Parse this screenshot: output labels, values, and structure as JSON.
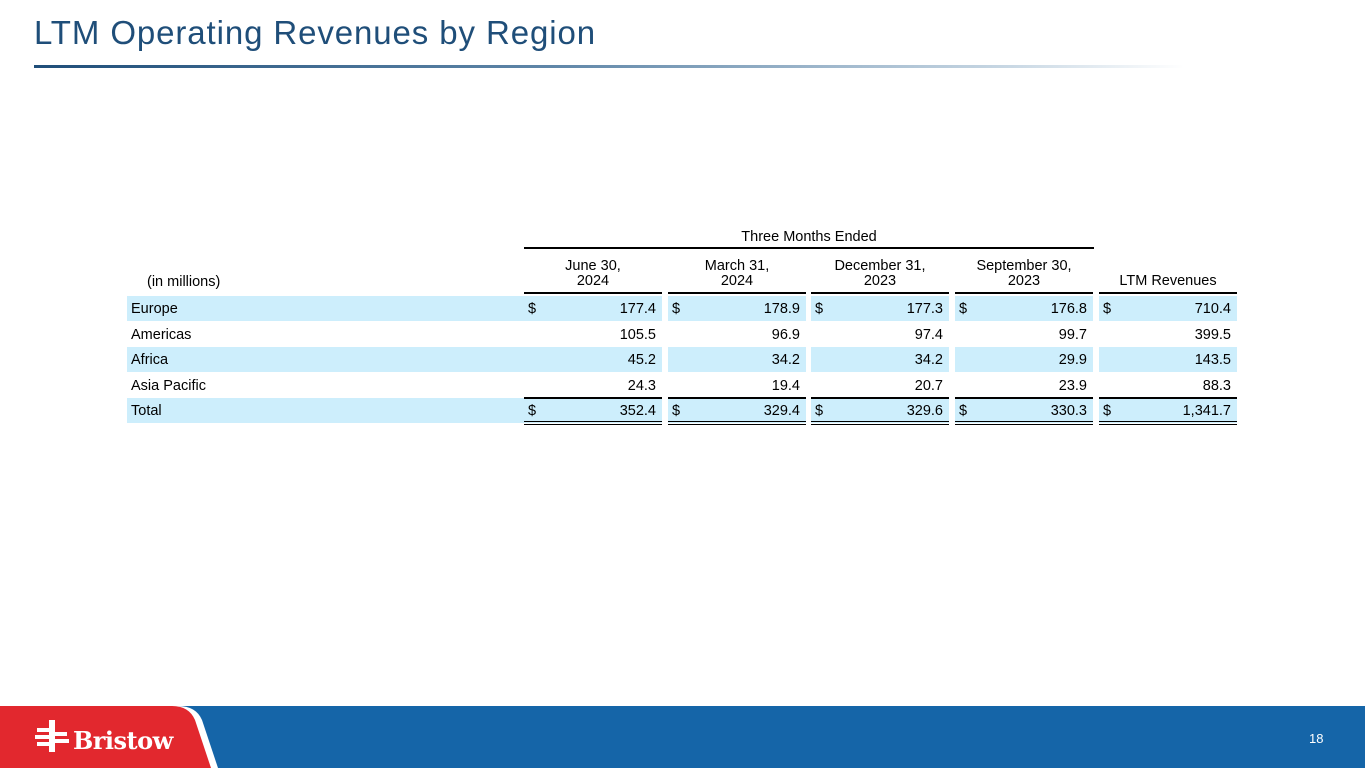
{
  "title": "LTM Operating Revenues by Region",
  "table": {
    "group_header": "Three Months Ended",
    "units_label": "(in millions)",
    "columns": [
      {
        "line1": "June 30,",
        "line2": "2024"
      },
      {
        "line1": "March 31,",
        "line2": "2024"
      },
      {
        "line1": "December 31,",
        "line2": "2023"
      },
      {
        "line1": "September 30,",
        "line2": "2023"
      },
      {
        "line1": "LTM Revenues",
        "line2": ""
      }
    ],
    "currency_symbol": "$",
    "rows": [
      {
        "label": "Europe",
        "values": [
          "177.4",
          "178.9",
          "177.3",
          "176.8",
          "710.4"
        ]
      },
      {
        "label": "Americas",
        "values": [
          "105.5",
          "96.9",
          "97.4",
          "99.7",
          "399.5"
        ]
      },
      {
        "label": "Africa",
        "values": [
          "45.2",
          "34.2",
          "34.2",
          "29.9",
          "143.5"
        ]
      },
      {
        "label": "Asia Pacific",
        "values": [
          "24.3",
          "19.4",
          "20.7",
          "23.9",
          "88.3"
        ]
      },
      {
        "label": "Total",
        "values": [
          "352.4",
          "329.4",
          "329.6",
          "330.3",
          "1,341.7"
        ]
      }
    ]
  },
  "footer": {
    "brand": "Bristow",
    "page_number": "18",
    "colors": {
      "bar": "#1565a8",
      "accent": "#e2282e"
    }
  }
}
